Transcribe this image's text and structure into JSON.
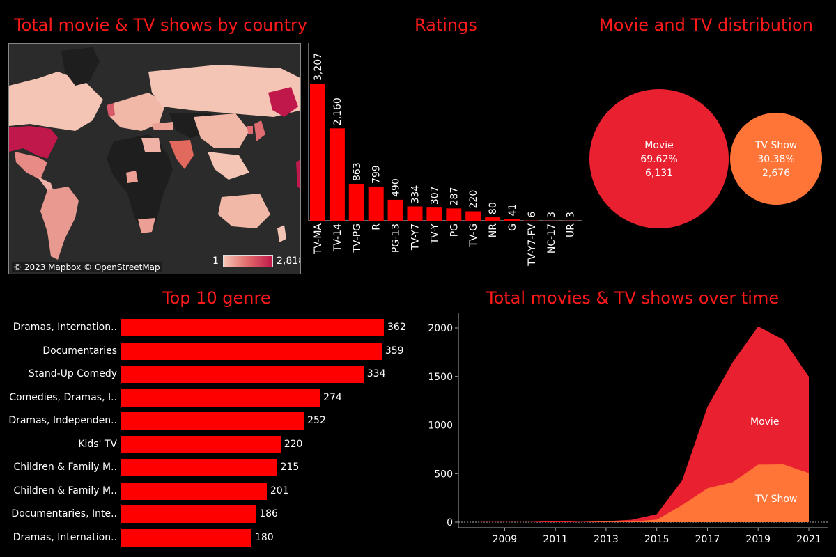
{
  "colors": {
    "title": "#ff1a1a",
    "bar": "#ff0000",
    "movie": "#e8202f",
    "tvshow": "#ff7437",
    "map_bg": "#2b2b2b",
    "map_land_low": "#f4c4b4",
    "map_land_high": "#c0184a",
    "map_land_nodata": "#1e1e1e"
  },
  "map": {
    "title": "Total movie & TV shows by country",
    "attribution": "© 2023 Mapbox © OpenStreetMap",
    "legend_min": "1",
    "legend_max": "2,818"
  },
  "chart_data": [
    {
      "type": "bar",
      "title": "Ratings",
      "categories": [
        "TV-MA",
        "TV-14",
        "TV-PG",
        "R",
        "PG-13",
        "TV-Y7",
        "TV-Y",
        "PG",
        "TV-G",
        "NR",
        "G",
        "TV-Y7-FV",
        "NC-17",
        "UR"
      ],
      "values": [
        3207,
        2160,
        863,
        799,
        490,
        334,
        307,
        287,
        220,
        80,
        41,
        6,
        3,
        3
      ],
      "labels": [
        "3,207",
        "2,160",
        "863",
        "799",
        "490",
        "334",
        "307",
        "287",
        "220",
        "80",
        "41",
        "6",
        "3",
        "3"
      ]
    },
    {
      "type": "pie",
      "title": "Movie and TV distribution",
      "slices": [
        {
          "name": "Movie",
          "percent": "69.62%",
          "value": 6131,
          "value_label": "6,131"
        },
        {
          "name": "TV Show",
          "percent": "30.38%",
          "value": 2676,
          "value_label": "2,676"
        }
      ]
    },
    {
      "type": "bar",
      "title": "Top 10 genre",
      "orientation": "horizontal",
      "categories": [
        "Dramas, Internation..",
        "Documentaries",
        "Stand-Up Comedy",
        "Comedies, Dramas, I..",
        "Dramas, Independen..",
        "Kids' TV",
        "Children & Family M..",
        "Children & Family M..",
        "Documentaries, Inte..",
        "Dramas, Internation.."
      ],
      "values": [
        362,
        359,
        334,
        274,
        252,
        220,
        215,
        201,
        186,
        180
      ]
    },
    {
      "type": "area",
      "title": "Total movies & TV shows over time",
      "x": [
        2008,
        2009,
        2010,
        2011,
        2012,
        2013,
        2014,
        2015,
        2016,
        2017,
        2018,
        2019,
        2020,
        2021
      ],
      "series": [
        {
          "name": "Movie",
          "values": [
            2,
            2,
            1,
            13,
            3,
            6,
            19,
            56,
            253,
            839,
            1237,
            1424,
            1284,
            993
          ]
        },
        {
          "name": "TV Show",
          "values": [
            0,
            0,
            0,
            0,
            0,
            5,
            5,
            26,
            176,
            349,
            412,
            592,
            595,
            505
          ]
        }
      ],
      "ylim": [
        0,
        2150
      ],
      "yticks": [
        0,
        500,
        1000,
        1500,
        2000
      ],
      "xticks": [
        2009,
        2011,
        2013,
        2015,
        2017,
        2019,
        2021
      ],
      "stacked": true
    }
  ]
}
